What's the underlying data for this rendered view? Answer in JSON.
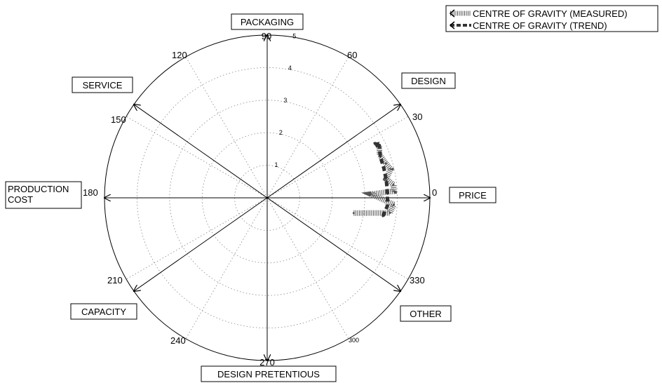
{
  "chart_data": {
    "type": "polar-line",
    "radial_range": [
      0,
      5
    ],
    "radial_ticks": [
      "1",
      "2",
      "3",
      "4",
      "5"
    ],
    "angle_ticks": [
      {
        "deg": 0,
        "label": "0"
      },
      {
        "deg": 30,
        "label": "30"
      },
      {
        "deg": 60,
        "label": "60"
      },
      {
        "deg": 90,
        "label": "90"
      },
      {
        "deg": 120,
        "label": "120"
      },
      {
        "deg": 150,
        "label": "150"
      },
      {
        "deg": 180,
        "label": "180"
      },
      {
        "deg": 210,
        "label": "210"
      },
      {
        "deg": 240,
        "label": "240"
      },
      {
        "deg": 270,
        "label": "270"
      },
      {
        "deg": 300,
        "label": "300"
      },
      {
        "deg": 330,
        "label": "330"
      }
    ],
    "axes": [
      {
        "deg": 0,
        "label": "PRICE"
      },
      {
        "deg": 35,
        "label": "DESIGN"
      },
      {
        "deg": 90,
        "label": "PACKAGING"
      },
      {
        "deg": 145,
        "label": "SERVICE"
      },
      {
        "deg": 180,
        "label": "PRODUCTION COST"
      },
      {
        "deg": 215,
        "label": "CAPACITY"
      },
      {
        "deg": 270,
        "label": "DESIGN PRETENTIOUS"
      },
      {
        "deg": 325,
        "label": "OTHER"
      }
    ],
    "series": [
      {
        "name": "CENTRE OF GRAVITY (MEASURED)",
        "style": "hatched",
        "color": "#555555",
        "points": [
          {
            "angle": 350,
            "r": 2.7
          },
          {
            "angle": 353,
            "r": 3.8
          },
          {
            "angle": 357,
            "r": 3.9
          },
          {
            "angle": 2,
            "r": 3.2
          },
          {
            "angle": 3,
            "r": 3.9
          },
          {
            "angle": 6,
            "r": 3.9
          },
          {
            "angle": 9,
            "r": 3.7
          },
          {
            "angle": 13,
            "r": 3.9
          },
          {
            "angle": 16,
            "r": 3.8
          },
          {
            "angle": 21,
            "r": 3.7
          },
          {
            "angle": 25,
            "r": 3.8
          }
        ]
      },
      {
        "name": "CENTRE OF GRAVITY (TREND)",
        "style": "dashed",
        "color": "#333333",
        "points": [
          {
            "angle": 351,
            "r": 3.6
          },
          {
            "angle": 356,
            "r": 3.7
          },
          {
            "angle": 2,
            "r": 3.7
          },
          {
            "angle": 8,
            "r": 3.7
          },
          {
            "angle": 14,
            "r": 3.7
          },
          {
            "angle": 20,
            "r": 3.7
          },
          {
            "angle": 25,
            "r": 3.8
          },
          {
            "angle": 27,
            "r": 3.7
          }
        ]
      }
    ],
    "legend_position": "top-right",
    "grid": true
  }
}
